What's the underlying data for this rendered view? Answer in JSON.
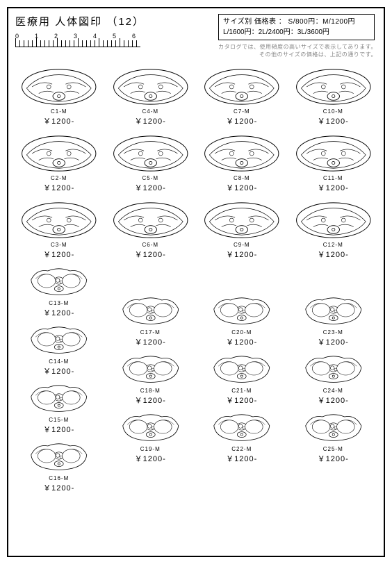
{
  "header": {
    "title": "医療用 人体図印 （12）",
    "ruler_labels": [
      "0",
      "1",
      "2",
      "3",
      "4",
      "5",
      "6"
    ]
  },
  "price_table": {
    "line1": "サイズ別 価格表 ： S/800円：M/1200円",
    "line2": "L/1600円：2L/2400円：3L/3600円"
  },
  "catalog_note": {
    "line1": "カタログでは、使用頻度の高いサイズで表示してあります。",
    "line2": "その他のサイズの価格は、上記の通りです。"
  },
  "currency_prefix": "￥",
  "price_suffix": "-",
  "section1": [
    {
      "code": "C1-M",
      "price": "1200"
    },
    {
      "code": "C4-M",
      "price": "1200"
    },
    {
      "code": "C7-M",
      "price": "1200"
    },
    {
      "code": "C10-M",
      "price": "1200"
    },
    {
      "code": "C2-M",
      "price": "1200"
    },
    {
      "code": "C5-M",
      "price": "1200"
    },
    {
      "code": "C8-M",
      "price": "1200"
    },
    {
      "code": "C11-M",
      "price": "1200"
    },
    {
      "code": "C3-M",
      "price": "1200"
    },
    {
      "code": "C6-M",
      "price": "1200"
    },
    {
      "code": "C9-M",
      "price": "1200"
    },
    {
      "code": "C12-M",
      "price": "1200"
    }
  ],
  "section2": [
    {
      "code": "C13-M",
      "price": "1200"
    },
    {
      "code": "C14-M",
      "price": "1200"
    },
    {
      "code": "C15-M",
      "price": "1200"
    },
    {
      "code": "C16-M",
      "price": "1200"
    },
    {
      "code": "C17-M",
      "price": "1200"
    },
    {
      "code": "C18-M",
      "price": "1200"
    },
    {
      "code": "C19-M",
      "price": "1200"
    },
    {
      "code": "C20-M",
      "price": "1200"
    },
    {
      "code": "C21-M",
      "price": "1200"
    },
    {
      "code": "C22-M",
      "price": "1200"
    },
    {
      "code": "C23-M",
      "price": "1200"
    },
    {
      "code": "C24-M",
      "price": "1200"
    },
    {
      "code": "C25-M",
      "price": "1200"
    }
  ],
  "style": {
    "stroke": "#000000",
    "stroke_width": 0.8,
    "fill": "#ffffff",
    "bg": "#ffffff",
    "border": "#000000"
  }
}
